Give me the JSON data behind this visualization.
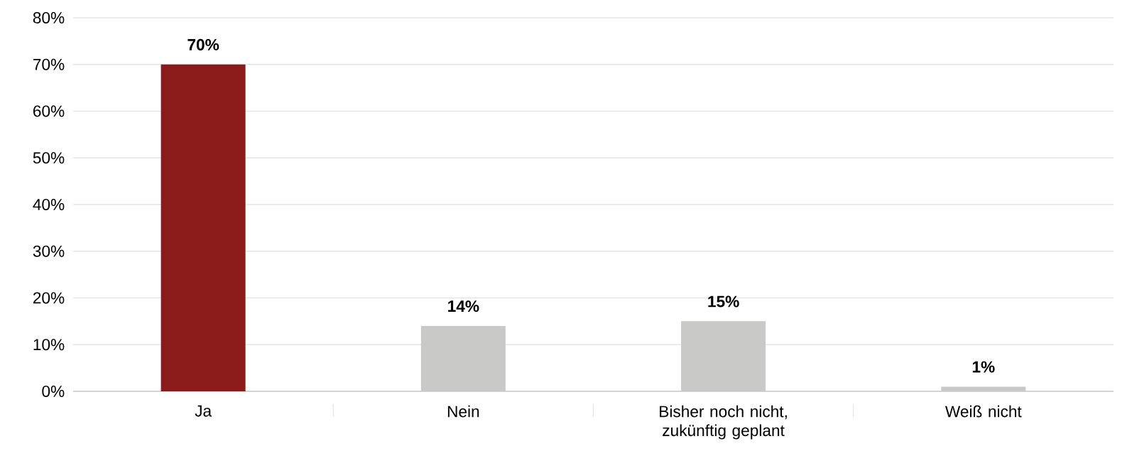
{
  "chart_data": {
    "type": "bar",
    "categories": [
      "Ja",
      "Nein",
      "Bisher noch nicht, zukünftig geplant",
      "Weiß nicht"
    ],
    "values": [
      70,
      14,
      15,
      1
    ],
    "colors": [
      "#8b1a1a",
      "#c9c9c7",
      "#c9c9c7",
      "#c9c9c7"
    ],
    "value_labels": [
      "70%",
      "14%",
      "15%",
      "1%"
    ],
    "ylim": [
      0,
      80
    ],
    "yticks": [
      {
        "value": 0,
        "label": "0%"
      },
      {
        "value": 10,
        "label": "10%"
      },
      {
        "value": 20,
        "label": "20%"
      },
      {
        "value": 30,
        "label": "30%"
      },
      {
        "value": 40,
        "label": "40%"
      },
      {
        "value": 50,
        "label": "50%"
      },
      {
        "value": 60,
        "label": "60%"
      },
      {
        "value": 70,
        "label": "70%"
      },
      {
        "value": 80,
        "label": "80%"
      }
    ],
    "grid": "y"
  }
}
